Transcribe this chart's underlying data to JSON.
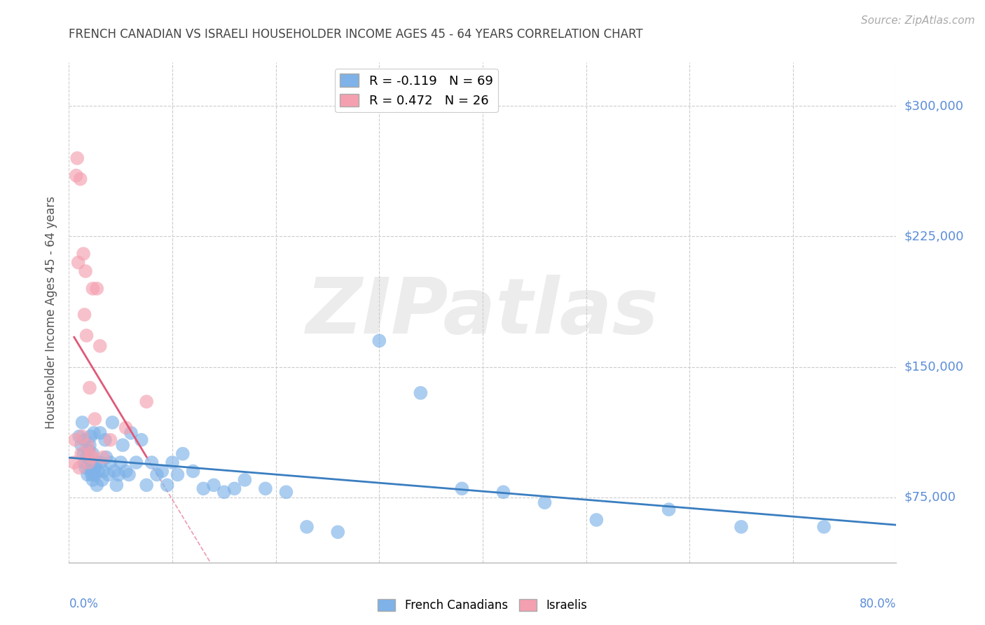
{
  "title": "FRENCH CANADIAN VS ISRAELI HOUSEHOLDER INCOME AGES 45 - 64 YEARS CORRELATION CHART",
  "source": "Source: ZipAtlas.com",
  "ylabel": "Householder Income Ages 45 - 64 years",
  "watermark": "ZIPatlas",
  "ytick_labels": [
    "$75,000",
    "$150,000",
    "$225,000",
    "$300,000"
  ],
  "ytick_values": [
    75000,
    150000,
    225000,
    300000
  ],
  "ymin": 37500,
  "ymax": 325000,
  "xmin": 0.0,
  "xmax": 0.8,
  "french_canadian_color": "#7EB2E8",
  "israeli_color": "#F4A0B0",
  "french_canadian_line_color": "#3A7EC0",
  "israeli_line_color": "#E05878",
  "title_color": "#444444",
  "ytick_color": "#5B8DD9",
  "xtick_color": "#5B8DD9",
  "background_color": "#FFFFFF",
  "grid_color": "#CCCCCC",
  "R_french": -0.119,
  "N_french": 69,
  "R_israeli": 0.472,
  "N_israeli": 26,
  "french_canadians_x": [
    0.01,
    0.012,
    0.013,
    0.014,
    0.015,
    0.015,
    0.016,
    0.017,
    0.018,
    0.019,
    0.02,
    0.02,
    0.021,
    0.022,
    0.022,
    0.023,
    0.023,
    0.024,
    0.025,
    0.025,
    0.026,
    0.027,
    0.028,
    0.03,
    0.031,
    0.032,
    0.033,
    0.035,
    0.036,
    0.038,
    0.04,
    0.042,
    0.044,
    0.046,
    0.048,
    0.05,
    0.052,
    0.055,
    0.058,
    0.06,
    0.065,
    0.07,
    0.075,
    0.08,
    0.085,
    0.09,
    0.095,
    0.1,
    0.105,
    0.11,
    0.12,
    0.13,
    0.14,
    0.15,
    0.16,
    0.17,
    0.19,
    0.21,
    0.23,
    0.26,
    0.3,
    0.34,
    0.38,
    0.42,
    0.46,
    0.51,
    0.58,
    0.65,
    0.73
  ],
  "french_canadians_y": [
    110000,
    105000,
    118000,
    100000,
    95000,
    108000,
    92000,
    98000,
    88000,
    102000,
    105000,
    95000,
    110000,
    90000,
    88000,
    100000,
    85000,
    112000,
    92000,
    88000,
    95000,
    82000,
    90000,
    112000,
    95000,
    85000,
    90000,
    108000,
    98000,
    88000,
    95000,
    118000,
    90000,
    82000,
    88000,
    95000,
    105000,
    90000,
    88000,
    112000,
    95000,
    108000,
    82000,
    95000,
    88000,
    90000,
    82000,
    95000,
    88000,
    100000,
    90000,
    80000,
    82000,
    78000,
    80000,
    85000,
    80000,
    78000,
    58000,
    55000,
    165000,
    135000,
    80000,
    78000,
    72000,
    62000,
    68000,
    58000,
    58000
  ],
  "israelis_x": [
    0.005,
    0.006,
    0.007,
    0.008,
    0.009,
    0.01,
    0.011,
    0.012,
    0.013,
    0.014,
    0.015,
    0.016,
    0.017,
    0.018,
    0.019,
    0.02,
    0.021,
    0.022,
    0.023,
    0.025,
    0.027,
    0.03,
    0.033,
    0.04,
    0.055,
    0.075
  ],
  "israelis_y": [
    95000,
    108000,
    260000,
    270000,
    210000,
    92000,
    258000,
    100000,
    110000,
    215000,
    180000,
    205000,
    168000,
    105000,
    95000,
    138000,
    100000,
    98000,
    195000,
    120000,
    195000,
    162000,
    98000,
    108000,
    115000,
    130000
  ]
}
